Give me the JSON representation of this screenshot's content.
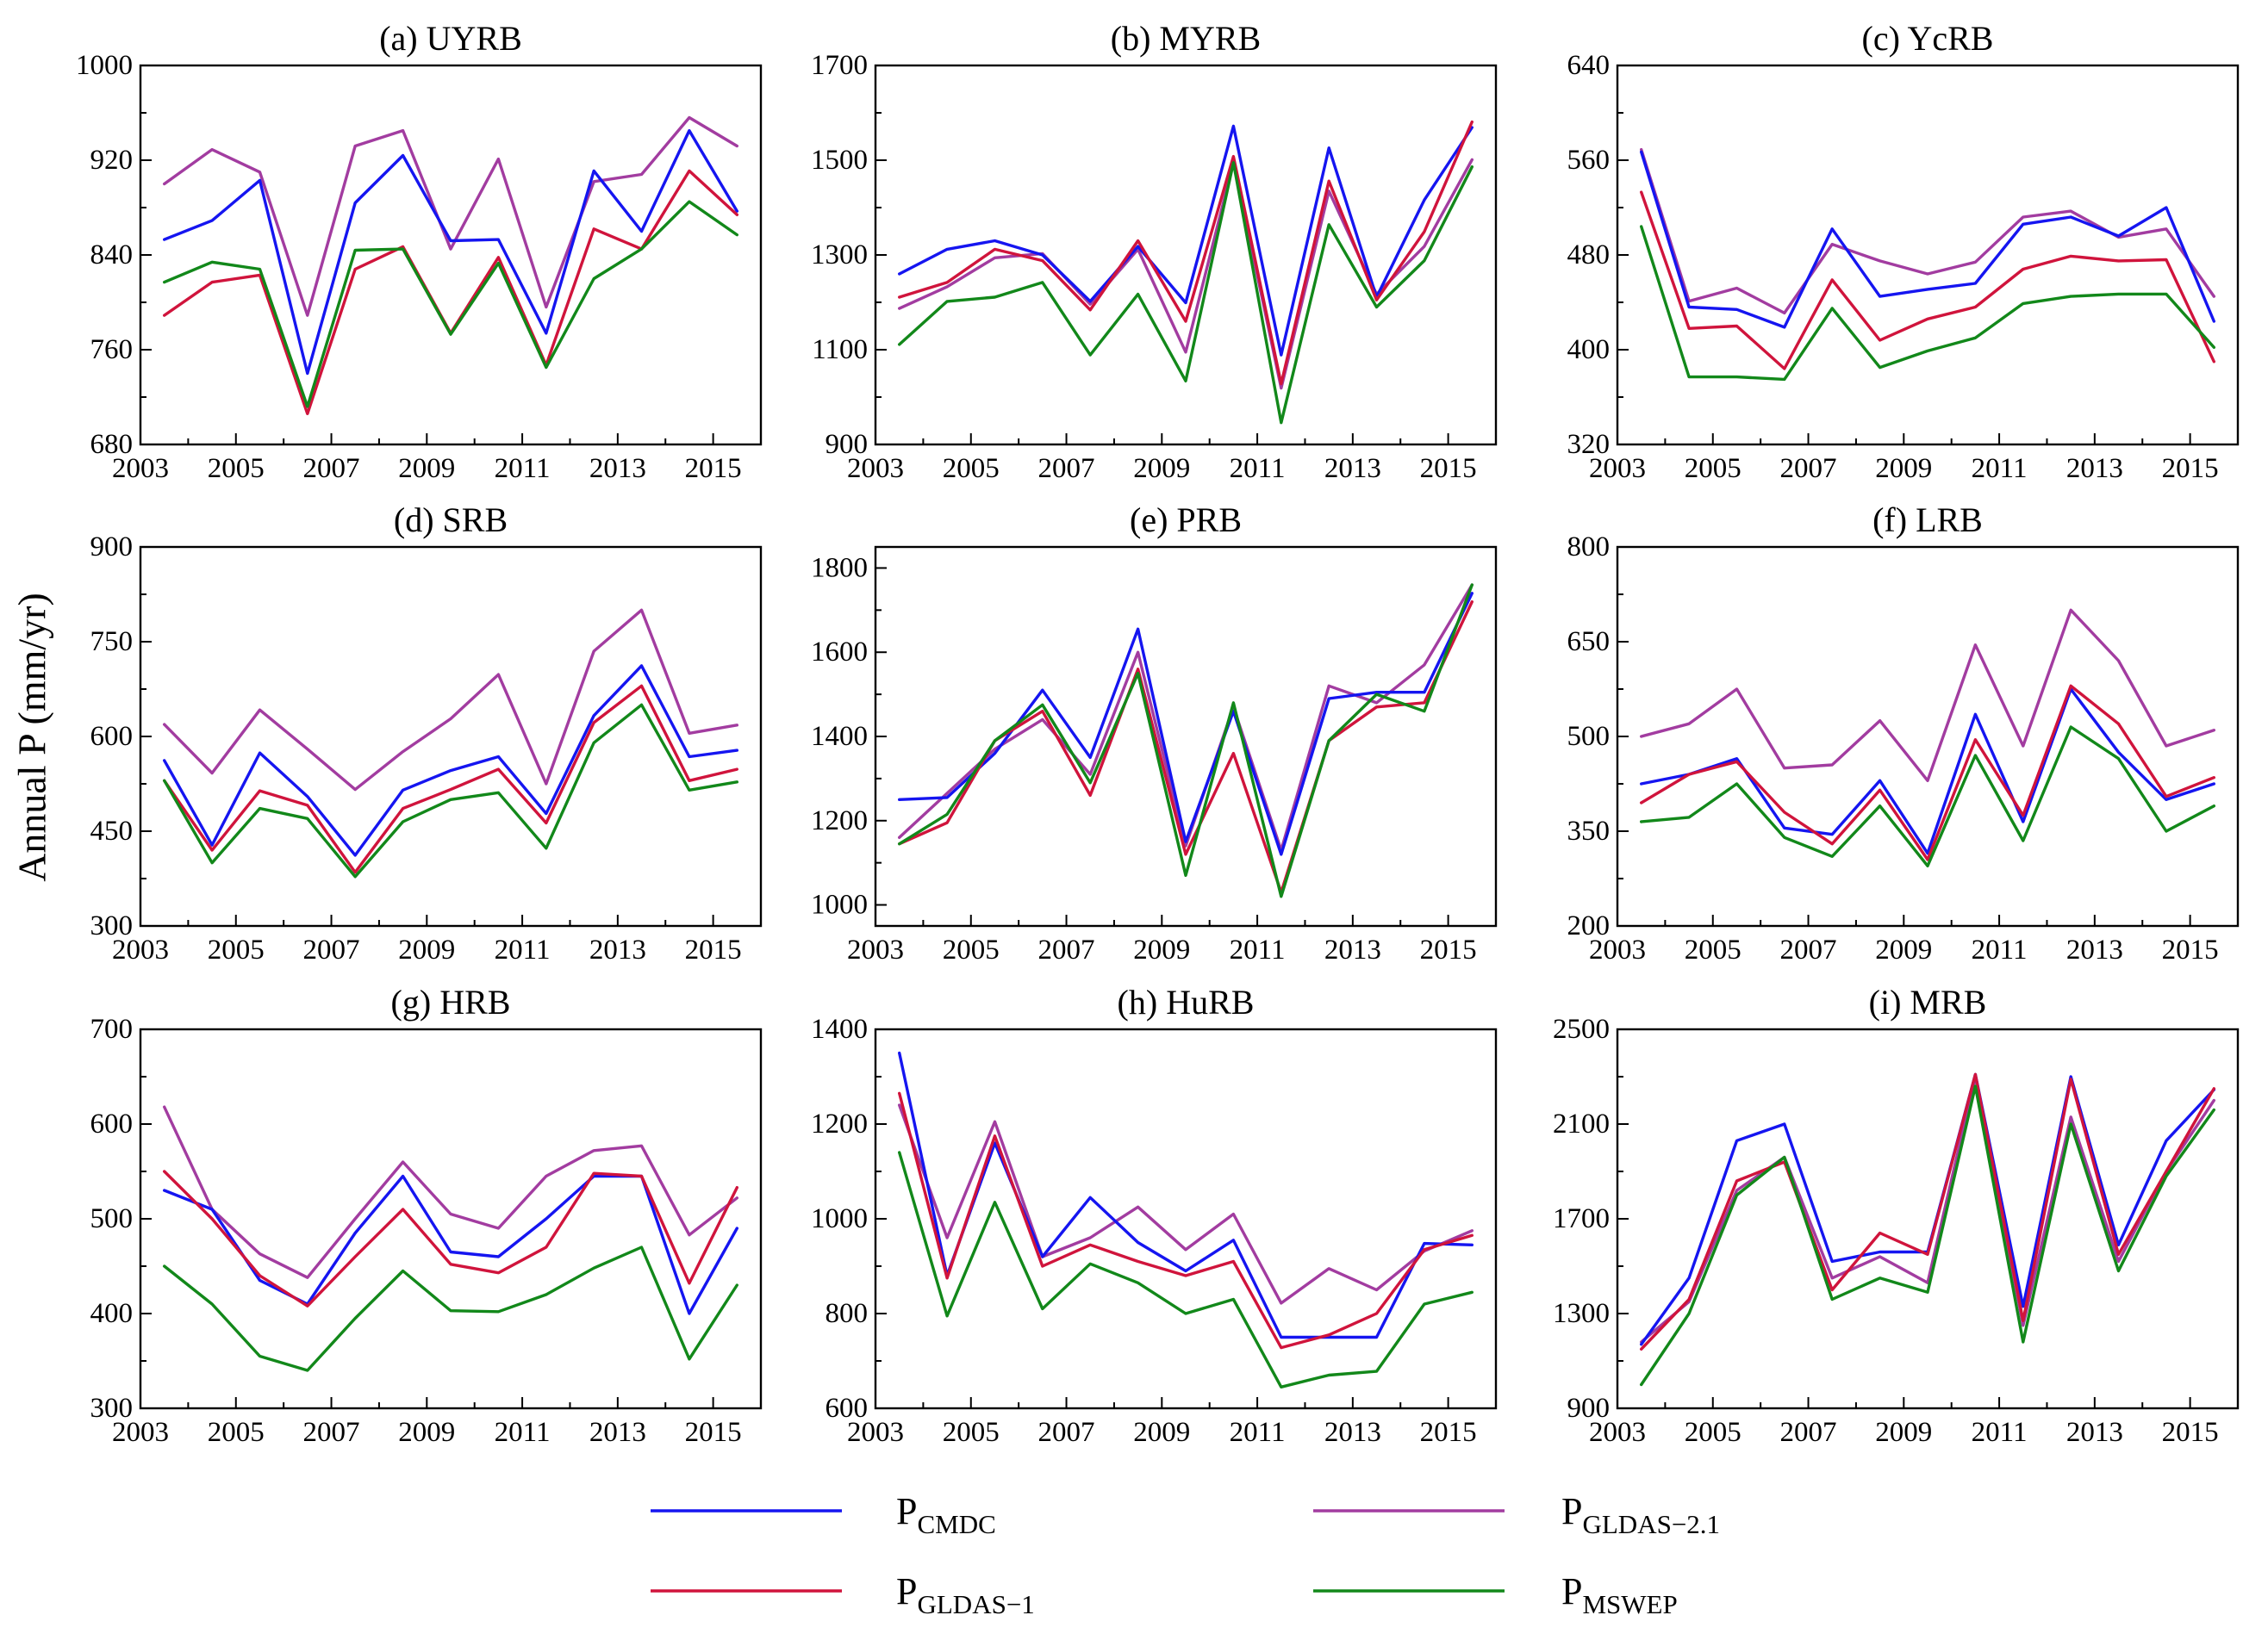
{
  "figure": {
    "ylabel": "Annual P (mm/yr)",
    "legend": [
      {
        "symbol": "P",
        "subscript": "CMDC",
        "color": "#1515f0"
      },
      {
        "symbol": "P",
        "subscript": "GLDAS−1",
        "color": "#d0143c"
      },
      {
        "symbol": "P",
        "subscript": "GLDAS−2.1",
        "color": "#a23ca0"
      },
      {
        "symbol": "P",
        "subscript": "MSWEP",
        "color": "#12881a"
      }
    ]
  },
  "chart_data": [
    {
      "type": "line",
      "title": "(a) UYRB",
      "x": [
        2003.5,
        2004.5,
        2005.5,
        2006.5,
        2007.5,
        2008.5,
        2009.5,
        2010.5,
        2011.5,
        2012.5,
        2013.5,
        2014.5,
        2015.5
      ],
      "xlim": [
        2003,
        2016
      ],
      "xticks": [
        2003,
        2005,
        2007,
        2009,
        2011,
        2013,
        2015
      ],
      "ylim": [
        680,
        1000
      ],
      "yticks": [
        680,
        760,
        840,
        920,
        1000
      ],
      "series": [
        {
          "name": "CMDC",
          "values": [
            853,
            869,
            903,
            740,
            884,
            924,
            852,
            853,
            774,
            911,
            860,
            945,
            877
          ]
        },
        {
          "name": "GLDAS−1",
          "values": [
            789,
            817,
            823,
            706,
            828,
            847,
            774,
            838,
            747,
            862,
            845,
            911,
            874
          ]
        },
        {
          "name": "GLDAS−2.1",
          "values": [
            900,
            929,
            910,
            789,
            932,
            945,
            845,
            921,
            796,
            902,
            908,
            956,
            932
          ]
        },
        {
          "name": "MSWEP",
          "values": [
            817,
            834,
            828,
            712,
            844,
            845,
            773,
            833,
            745,
            820,
            845,
            885,
            857
          ]
        }
      ]
    },
    {
      "type": "line",
      "title": "(b) MYRB",
      "x": [
        2003.5,
        2004.5,
        2005.5,
        2006.5,
        2007.5,
        2008.5,
        2009.5,
        2010.5,
        2011.5,
        2012.5,
        2013.5,
        2014.5,
        2015.5
      ],
      "xlim": [
        2003,
        2016
      ],
      "xticks": [
        2003,
        2005,
        2007,
        2009,
        2011,
        2013,
        2015
      ],
      "ylim": [
        900,
        1700
      ],
      "yticks": [
        900,
        1100,
        1300,
        1500,
        1700
      ],
      "series": [
        {
          "name": "CMDC",
          "values": [
            1260,
            1312,
            1330,
            1300,
            1202,
            1318,
            1199,
            1572,
            1089,
            1526,
            1211,
            1416,
            1569
          ]
        },
        {
          "name": "GLDAS−1",
          "values": [
            1211,
            1242,
            1312,
            1288,
            1184,
            1330,
            1160,
            1508,
            1028,
            1456,
            1205,
            1349,
            1581
          ]
        },
        {
          "name": "GLDAS−2.1",
          "values": [
            1187,
            1233,
            1294,
            1303,
            1196,
            1312,
            1095,
            1495,
            1019,
            1435,
            1217,
            1318,
            1501
          ]
        },
        {
          "name": "MSWEP",
          "values": [
            1111,
            1202,
            1211,
            1242,
            1089,
            1217,
            1034,
            1495,
            946,
            1364,
            1190,
            1288,
            1486
          ]
        }
      ]
    },
    {
      "type": "line",
      "title": "(c) YcRB",
      "x": [
        2003.5,
        2004.5,
        2005.5,
        2006.5,
        2007.5,
        2008.5,
        2009.5,
        2010.5,
        2011.5,
        2012.5,
        2013.5,
        2014.5,
        2015.5
      ],
      "xlim": [
        2003,
        2016
      ],
      "xticks": [
        2003,
        2005,
        2007,
        2009,
        2011,
        2013,
        2015
      ],
      "ylim": [
        320,
        640
      ],
      "yticks": [
        320,
        400,
        480,
        560,
        640
      ],
      "series": [
        {
          "name": "CMDC",
          "values": [
            567,
            436,
            434,
            419,
            502,
            445,
            451,
            456,
            506,
            512,
            496,
            520,
            424
          ]
        },
        {
          "name": "GLDAS−1",
          "values": [
            533,
            418,
            420,
            384,
            459,
            408,
            426,
            436,
            468,
            479,
            475,
            476,
            390
          ]
        },
        {
          "name": "GLDAS−2.1",
          "values": [
            569,
            441,
            452,
            431,
            489,
            475,
            464,
            474,
            512,
            517,
            495,
            502,
            445
          ]
        },
        {
          "name": "MSWEP",
          "values": [
            504,
            377,
            377,
            375,
            435,
            385,
            399,
            410,
            439,
            445,
            447,
            447,
            402
          ]
        }
      ]
    },
    {
      "type": "line",
      "title": "(d) SRB",
      "x": [
        2003.5,
        2004.5,
        2005.5,
        2006.5,
        2007.5,
        2008.5,
        2009.5,
        2010.5,
        2011.5,
        2012.5,
        2013.5,
        2014.5,
        2015.5
      ],
      "xlim": [
        2003,
        2016
      ],
      "xticks": [
        2003,
        2005,
        2007,
        2009,
        2011,
        2013,
        2015
      ],
      "ylim": [
        300,
        900
      ],
      "yticks": [
        300,
        450,
        600,
        750,
        900
      ],
      "series": [
        {
          "name": "CMDC",
          "values": [
            562,
            428,
            574,
            505,
            412,
            515,
            546,
            568,
            478,
            633,
            712,
            568,
            578
          ]
        },
        {
          "name": "GLDAS−1",
          "values": [
            530,
            420,
            514,
            491,
            385,
            486,
            516,
            548,
            463,
            622,
            680,
            530,
            548
          ]
        },
        {
          "name": "GLDAS−2.1",
          "values": [
            619,
            542,
            642,
            580,
            516,
            576,
            628,
            698,
            525,
            735,
            800,
            605,
            618
          ]
        },
        {
          "name": "MSWEP",
          "values": [
            530,
            400,
            486,
            470,
            378,
            465,
            500,
            511,
            423,
            590,
            650,
            515,
            528
          ]
        }
      ]
    },
    {
      "type": "line",
      "title": "(e) PRB",
      "x": [
        2003.5,
        2004.5,
        2005.5,
        2006.5,
        2007.5,
        2008.5,
        2009.5,
        2010.5,
        2011.5,
        2012.5,
        2013.5,
        2014.5,
        2015.5
      ],
      "xlim": [
        2003,
        2016
      ],
      "xticks": [
        2003,
        2005,
        2007,
        2009,
        2011,
        2013,
        2015
      ],
      "ylim": [
        950,
        1850
      ],
      "yticks": [
        1000,
        1200,
        1400,
        1600,
        1800
      ],
      "series": [
        {
          "name": "CMDC",
          "values": [
            1250,
            1255,
            1360,
            1510,
            1350,
            1655,
            1150,
            1460,
            1120,
            1490,
            1505,
            1505,
            1740
          ]
        },
        {
          "name": "GLDAS−1",
          "values": [
            1145,
            1195,
            1390,
            1460,
            1260,
            1560,
            1120,
            1360,
            1030,
            1390,
            1470,
            1480,
            1720
          ]
        },
        {
          "name": "GLDAS−2.1",
          "values": [
            1160,
            1265,
            1370,
            1440,
            1310,
            1600,
            1140,
            1470,
            1130,
            1520,
            1480,
            1570,
            1760
          ]
        },
        {
          "name": "MSWEP",
          "values": [
            1145,
            1215,
            1390,
            1475,
            1290,
            1550,
            1070,
            1480,
            1020,
            1390,
            1500,
            1460,
            1760
          ]
        }
      ]
    },
    {
      "type": "line",
      "title": "(f) LRB",
      "x": [
        2003.5,
        2004.5,
        2005.5,
        2006.5,
        2007.5,
        2008.5,
        2009.5,
        2010.5,
        2011.5,
        2012.5,
        2013.5,
        2014.5,
        2015.5
      ],
      "xlim": [
        2003,
        2016
      ],
      "xticks": [
        2003,
        2005,
        2007,
        2009,
        2011,
        2013,
        2015
      ],
      "ylim": [
        200,
        800
      ],
      "yticks": [
        200,
        350,
        500,
        650,
        800
      ],
      "series": [
        {
          "name": "CMDC",
          "values": [
            425,
            440,
            465,
            355,
            345,
            430,
            315,
            535,
            365,
            575,
            475,
            400,
            425
          ]
        },
        {
          "name": "GLDAS−1",
          "values": [
            395,
            440,
            460,
            380,
            330,
            415,
            305,
            495,
            375,
            580,
            520,
            405,
            435
          ]
        },
        {
          "name": "GLDAS−2.1",
          "values": [
            500,
            520,
            575,
            450,
            455,
            525,
            430,
            645,
            485,
            700,
            620,
            485,
            510
          ]
        },
        {
          "name": "MSWEP",
          "values": [
            365,
            372,
            425,
            340,
            310,
            390,
            295,
            470,
            335,
            515,
            465,
            350,
            390
          ]
        }
      ]
    },
    {
      "type": "line",
      "title": "(g) HRB",
      "x": [
        2003.5,
        2004.5,
        2005.5,
        2006.5,
        2007.5,
        2008.5,
        2009.5,
        2010.5,
        2011.5,
        2012.5,
        2013.5,
        2014.5,
        2015.5
      ],
      "xlim": [
        2003,
        2016
      ],
      "xticks": [
        2003,
        2005,
        2007,
        2009,
        2011,
        2013,
        2015
      ],
      "ylim": [
        300,
        700
      ],
      "yticks": [
        300,
        400,
        500,
        600,
        700
      ],
      "series": [
        {
          "name": "CMDC",
          "values": [
            530,
            510,
            435,
            410,
            485,
            545,
            465,
            460,
            500,
            545,
            545,
            400,
            490
          ]
        },
        {
          "name": "GLDAS−1",
          "values": [
            550,
            500,
            440,
            408,
            460,
            510,
            452,
            443,
            470,
            548,
            545,
            432,
            533
          ]
        },
        {
          "name": "GLDAS−2.1",
          "values": [
            618,
            510,
            463,
            438,
            500,
            560,
            505,
            490,
            545,
            572,
            577,
            483,
            522
          ]
        },
        {
          "name": "MSWEP",
          "values": [
            450,
            410,
            355,
            340,
            395,
            445,
            403,
            402,
            420,
            448,
            470,
            352,
            430
          ]
        }
      ]
    },
    {
      "type": "line",
      "title": "(h) HuRB",
      "x": [
        2003.5,
        2004.5,
        2005.5,
        2006.5,
        2007.5,
        2008.5,
        2009.5,
        2010.5,
        2011.5,
        2012.5,
        2013.5,
        2014.5,
        2015.5
      ],
      "xlim": [
        2003,
        2016
      ],
      "xticks": [
        2003,
        2005,
        2007,
        2009,
        2011,
        2013,
        2015
      ],
      "ylim": [
        600,
        1400
      ],
      "yticks": [
        600,
        800,
        1000,
        1200,
        1400
      ],
      "series": [
        {
          "name": "CMDC",
          "values": [
            1350,
            880,
            1160,
            920,
            1045,
            950,
            890,
            955,
            750,
            750,
            750,
            948,
            945
          ]
        },
        {
          "name": "GLDAS−1",
          "values": [
            1265,
            875,
            1175,
            900,
            945,
            910,
            880,
            910,
            728,
            755,
            800,
            935,
            965
          ]
        },
        {
          "name": "GLDAS−2.1",
          "values": [
            1240,
            960,
            1205,
            920,
            960,
            1025,
            935,
            1010,
            822,
            895,
            850,
            932,
            975
          ]
        },
        {
          "name": "MSWEP",
          "values": [
            1140,
            795,
            1035,
            810,
            905,
            865,
            800,
            830,
            645,
            670,
            678,
            820,
            845
          ]
        }
      ]
    },
    {
      "type": "line",
      "title": "(i) MRB",
      "x": [
        2003.5,
        2004.5,
        2005.5,
        2006.5,
        2007.5,
        2008.5,
        2009.5,
        2010.5,
        2011.5,
        2012.5,
        2013.5,
        2014.5,
        2015.5
      ],
      "xlim": [
        2003,
        2016
      ],
      "xticks": [
        2003,
        2005,
        2007,
        2009,
        2011,
        2013,
        2015
      ],
      "ylim": [
        900,
        2500
      ],
      "yticks": [
        900,
        1300,
        1700,
        2100,
        2500
      ],
      "series": [
        {
          "name": "CMDC",
          "values": [
            1170,
            1450,
            2030,
            2100,
            1520,
            1560,
            1560,
            2310,
            1330,
            2300,
            1590,
            2030,
            2245
          ]
        },
        {
          "name": "GLDAS−1",
          "values": [
            1150,
            1360,
            1860,
            1940,
            1400,
            1640,
            1550,
            2310,
            1270,
            2290,
            1550,
            1900,
            2250
          ]
        },
        {
          "name": "GLDAS−2.1",
          "values": [
            1180,
            1350,
            1820,
            1960,
            1450,
            1540,
            1430,
            2300,
            1250,
            2130,
            1520,
            1900,
            2200
          ]
        },
        {
          "name": "MSWEP",
          "values": [
            1000,
            1300,
            1800,
            1960,
            1360,
            1450,
            1390,
            2260,
            1180,
            2100,
            1480,
            1880,
            2160
          ]
        }
      ]
    }
  ]
}
